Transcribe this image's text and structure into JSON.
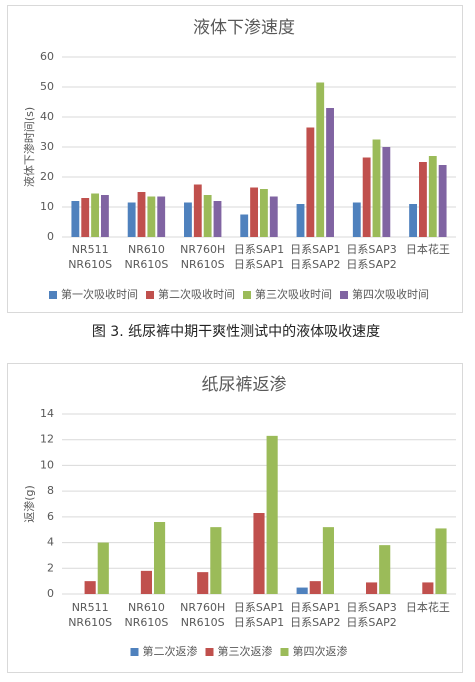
{
  "chart_data": [
    {
      "type": "bar",
      "title": "液体下渗速度",
      "y_label": "液体下渗时间(s)",
      "categories": [
        [
          "NR511",
          "NR610S"
        ],
        [
          "NR610",
          "NR610S"
        ],
        [
          "NR760H",
          "NR610S"
        ],
        [
          "日系SAP1",
          "日系SAP1"
        ],
        [
          "日系SAP1",
          "日系SAP2"
        ],
        [
          "日系SAP3",
          "日系SAP2"
        ],
        [
          "日本花王"
        ]
      ],
      "series": [
        {
          "name": "第一次吸收时间",
          "color": "#4f81bd",
          "values": [
            12,
            11.5,
            11.5,
            7.5,
            11,
            11.5,
            11
          ]
        },
        {
          "name": "第二次吸收时间",
          "color": "#c0504d",
          "values": [
            13,
            15,
            17.5,
            16.5,
            36.5,
            26.5,
            25
          ]
        },
        {
          "name": "第三次吸收时间",
          "color": "#9bbb59",
          "values": [
            14.5,
            13.5,
            14,
            16,
            51.5,
            32.5,
            27
          ]
        },
        {
          "name": "第四次吸收时间",
          "color": "#8064a2",
          "values": [
            14,
            13.5,
            12,
            13.5,
            43,
            30,
            24
          ]
        }
      ],
      "ylim": [
        0,
        60
      ],
      "yticks": [
        0,
        10,
        20,
        30,
        40,
        50,
        60
      ],
      "grid": true,
      "legend": "bottom"
    },
    {
      "type": "bar",
      "title": "纸尿裤返渗",
      "y_label": "返渗(g)",
      "categories": [
        [
          "NR511",
          "NR610S"
        ],
        [
          "NR610",
          "NR610S"
        ],
        [
          "NR760H",
          "NR610S"
        ],
        [
          "日系SAP1",
          "日系SAP1"
        ],
        [
          "日系SAP1",
          "日系SAP2"
        ],
        [
          "日系SAP3",
          "日系SAP2"
        ],
        [
          "日本花王"
        ]
      ],
      "series": [
        {
          "name": "第二次返渗",
          "color": "#4f81bd",
          "values": [
            null,
            null,
            null,
            null,
            0.5,
            null,
            null
          ]
        },
        {
          "name": "第三次返渗",
          "color": "#c0504d",
          "values": [
            1.0,
            1.8,
            1.7,
            6.3,
            1.0,
            0.9,
            0.9
          ]
        },
        {
          "name": "第四次返渗",
          "color": "#9bbb59",
          "values": [
            4.0,
            5.6,
            5.2,
            12.3,
            5.2,
            3.8,
            5.1
          ]
        }
      ],
      "ylim": [
        0,
        14
      ],
      "yticks": [
        0,
        2,
        4,
        6,
        8,
        10,
        12,
        14
      ],
      "grid": true,
      "legend": "bottom"
    }
  ],
  "captions": [
    "图 3. 纸尿裤中期干爽性测试中的液体吸收速度"
  ]
}
